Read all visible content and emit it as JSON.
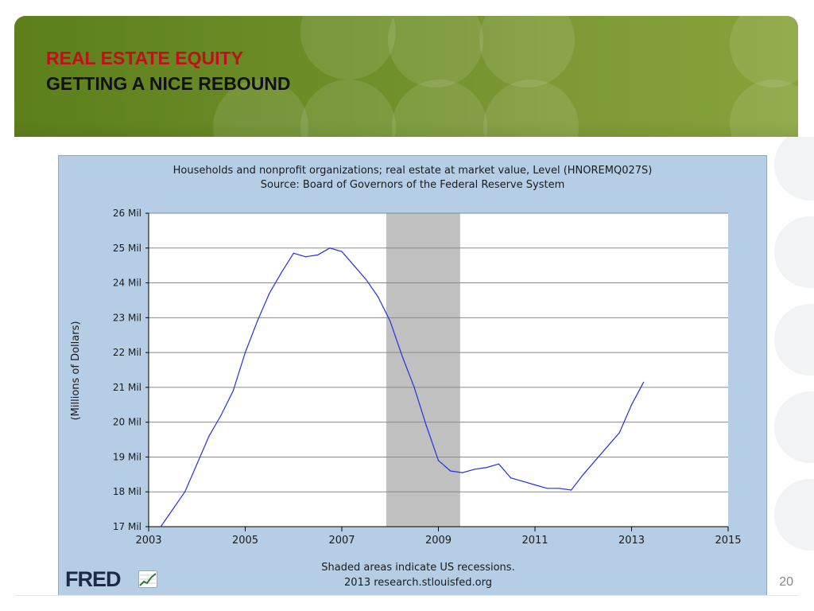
{
  "slide": {
    "title_line1": "REAL ESTATE EQUITY",
    "title_line2": "GETTING A NICE REBOUND",
    "page_number": "20",
    "header_color": "#6f8f2a",
    "title_accent_color": "#c0101a"
  },
  "logo": {
    "text": "FRED",
    "icon": "chart-line-icon"
  },
  "chart_data": {
    "type": "line",
    "title": "Households and nonprofit organizations; real estate at market value, Level (HNOREMQ027S)",
    "subtitle": "Source: Board of Governors of the Federal Reserve System",
    "ylabel": "(Millions of Dollars)",
    "xlabel": "",
    "footnote_line1": "Shaded areas indicate US recessions.",
    "footnote_line2": "2013 research.stlouisfed.org",
    "xlim": [
      2003,
      2015
    ],
    "ylim": [
      17,
      26
    ],
    "x_ticks": [
      2003,
      2005,
      2007,
      2009,
      2011,
      2013,
      2015
    ],
    "x_tick_labels": [
      "2003",
      "2005",
      "2007",
      "2009",
      "2011",
      "2013",
      "2015"
    ],
    "y_ticks": [
      17,
      18,
      19,
      20,
      21,
      22,
      23,
      24,
      25,
      26
    ],
    "y_tick_labels": [
      "17 Mil",
      "18 Mil",
      "19 Mil",
      "20 Mil",
      "21 Mil",
      "22 Mil",
      "23 Mil",
      "24 Mil",
      "25 Mil",
      "26 Mil"
    ],
    "grid": true,
    "line_color": "#2233dd",
    "recession_color": "#c0c0c0",
    "recessions": [
      {
        "start": 2007.92,
        "end": 2009.45
      }
    ],
    "series": [
      {
        "x": [
          2003.25,
          2003.5,
          2003.75,
          2004.0,
          2004.25,
          2004.5,
          2004.75,
          2005.0,
          2005.25,
          2005.5,
          2005.75,
          2006.0,
          2006.25,
          2006.5,
          2006.75,
          2007.0,
          2007.25,
          2007.5,
          2007.75,
          2008.0,
          2008.25,
          2008.5,
          2008.75,
          2009.0,
          2009.25,
          2009.5,
          2009.75,
          2010.0,
          2010.25,
          2010.5,
          2010.75,
          2011.0,
          2011.25,
          2011.5,
          2011.75,
          2012.0,
          2012.25,
          2012.5,
          2012.75,
          2013.0,
          2013.25
        ],
        "values": [
          17.0,
          17.5,
          18.0,
          18.8,
          19.6,
          20.2,
          20.9,
          22.0,
          22.9,
          23.7,
          24.3,
          24.85,
          24.75,
          24.8,
          25.0,
          24.9,
          24.5,
          24.1,
          23.6,
          22.9,
          21.9,
          21.0,
          19.9,
          18.9,
          18.6,
          18.55,
          18.65,
          18.7,
          18.8,
          18.4,
          18.3,
          18.2,
          18.1,
          18.1,
          18.05,
          18.5,
          18.9,
          19.3,
          19.7,
          20.5,
          21.15
        ]
      }
    ]
  }
}
